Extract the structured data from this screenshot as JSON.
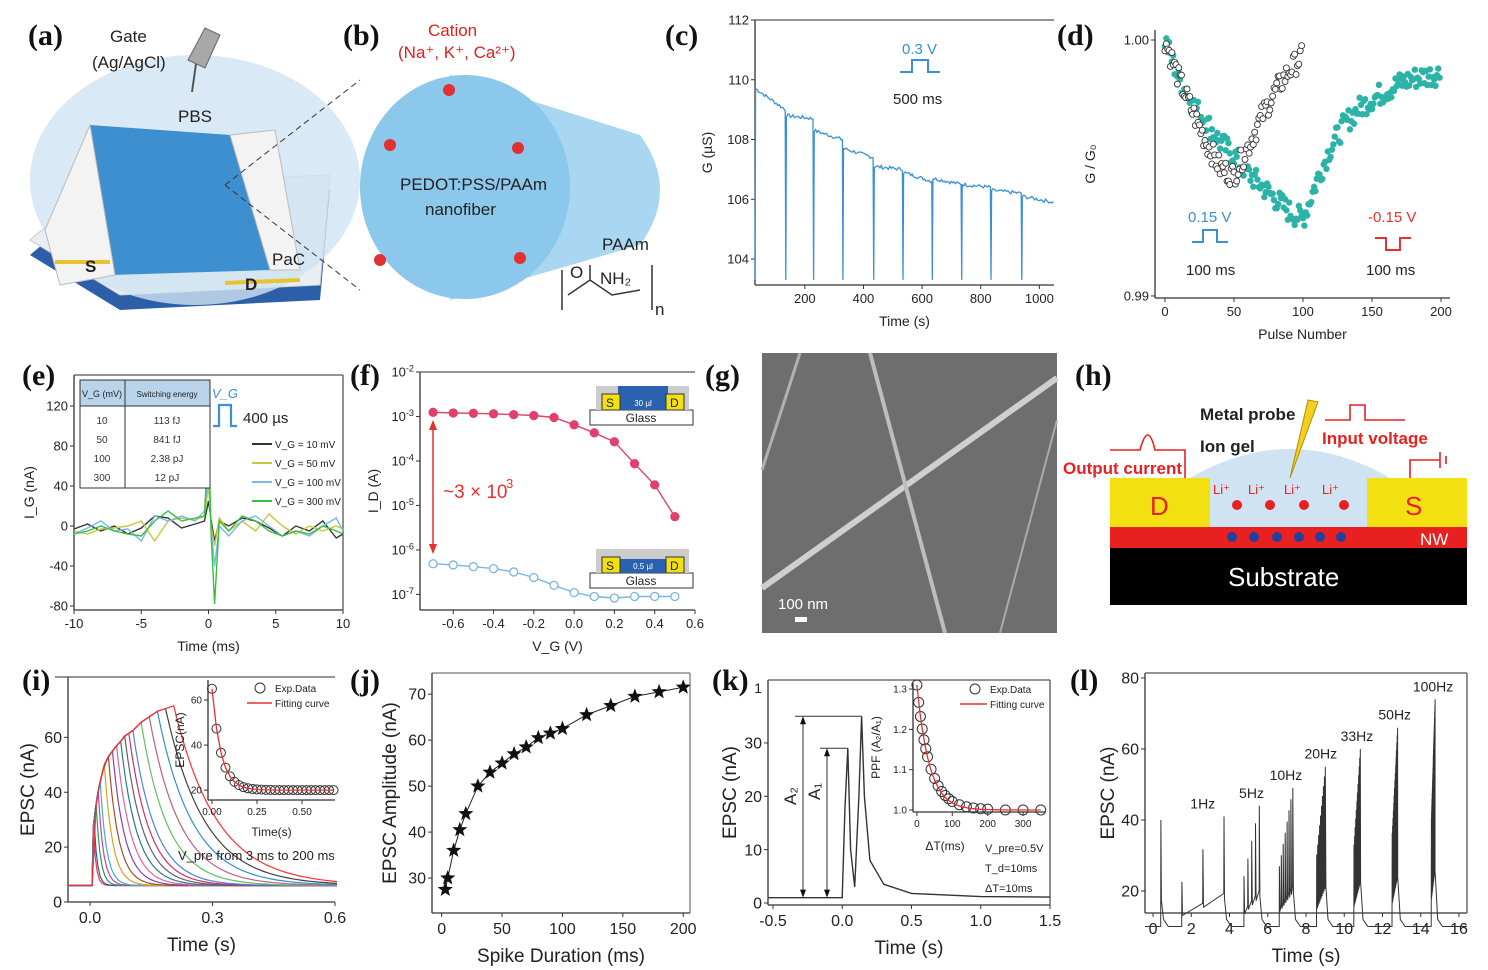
{
  "panel_labels": [
    "(a)",
    "(b)",
    "(c)",
    "(d)",
    "(e)",
    "(f)",
    "(g)",
    "(h)",
    "(i)",
    "(j)",
    "(k)",
    "(l)"
  ],
  "diagrams": {
    "a": {
      "gate": "Gate",
      "gate_material": "(Ag/AgCl)",
      "electrolyte": "PBS",
      "source": "S",
      "drain": "D",
      "encapsulation": "PaC"
    },
    "b": {
      "cation": "Cation",
      "cation_list": "(Na⁺, K⁺, Ca²⁺)",
      "fiber_line1": "PEDOT:PSS/PAAm",
      "fiber_line2": "nanofiber",
      "polymer": "PAAm",
      "oxygen": "O",
      "amine": "NH₂",
      "repeat": "n"
    },
    "g": {
      "scale_bar": "100 nm"
    },
    "h": {
      "probe": "Metal probe",
      "input": "Input voltage",
      "gel": "Ion gel",
      "output": "Output current",
      "drain": "D",
      "source": "S",
      "nanowire": "NW",
      "substrate": "Substrate",
      "ion": "Li⁺"
    }
  },
  "colors": {
    "blue_trace": "#3a8fd6",
    "teal": "#2bb3a8",
    "red": "#e8302f",
    "pink": "#e0406a",
    "light_blue": "#7ab6e0",
    "sem_gray": "#6e6e6e"
  },
  "chart_data": [
    {
      "panel": "c",
      "type": "line",
      "xlabel": "Time (s)",
      "ylabel": "G (µS)",
      "xlim": [
        30,
        1050
      ],
      "ylim": [
        103.13,
        112
      ],
      "xticks": [
        200,
        400,
        600,
        800,
        1000
      ],
      "yticks": [
        104,
        106,
        108,
        110,
        112
      ],
      "pulse_times": [
        30,
        135,
        230,
        330,
        435,
        535,
        635,
        735,
        835,
        940
      ],
      "segment_levels": [
        [
          109.7,
          109.0
        ],
        [
          108.8,
          108.7
        ],
        [
          108.3,
          108.0
        ],
        [
          107.7,
          107.4
        ],
        [
          107.1,
          107.0
        ],
        [
          106.9,
          106.6
        ],
        [
          106.7,
          106.5
        ],
        [
          106.5,
          106.4
        ],
        [
          106.3,
          106.2
        ],
        [
          106.1,
          105.9
        ]
      ],
      "dip_level": 103.3,
      "annotations": {
        "pulse_amplitude": "0.3 V",
        "pulse_width": "500 ms"
      }
    },
    {
      "panel": "d",
      "type": "scatter",
      "xlabel": "Pulse Number",
      "ylabel": "G / G₀",
      "xlim": [
        -7.2,
        206.5
      ],
      "ylim": [
        0.98992,
        1.00039
      ],
      "xticks": [
        0,
        50,
        100,
        150,
        200
      ],
      "yticks": [
        0.99,
        1.0
      ],
      "ytick_labels": [
        "0.99",
        "1.00"
      ],
      "series": [
        {
          "name": "teal",
          "x": [
            0,
            10,
            20,
            30,
            40,
            50,
            60,
            70,
            80,
            90,
            100,
            110,
            120,
            130,
            140,
            150,
            160,
            170,
            180,
            190,
            200
          ],
          "y": [
            1.0,
            0.9985,
            0.9975,
            0.9968,
            0.996,
            0.9955,
            0.9948,
            0.9943,
            0.9938,
            0.9933,
            0.993,
            0.9945,
            0.9958,
            0.9967,
            0.9973,
            0.9977,
            0.998,
            0.9983,
            0.9985,
            0.9986,
            0.9987
          ]
        },
        {
          "name": "open",
          "x": [
            0,
            10,
            20,
            30,
            40,
            50,
            60,
            70,
            80,
            90,
            100
          ],
          "y": [
            1.0,
            0.9985,
            0.9972,
            0.996,
            0.995,
            0.9947,
            0.9958,
            0.997,
            0.998,
            0.9988,
            0.9994
          ]
        }
      ],
      "annotations": {
        "pos_amp": "0.15 V",
        "pos_width": "100 ms",
        "neg_amp": "-0.15 V",
        "neg_width": "100 ms"
      }
    },
    {
      "panel": "e",
      "type": "line",
      "xlabel": "Time (ms)",
      "ylabel": "I_G (nA)",
      "xlim": [
        -10,
        10
      ],
      "ylim": [
        -84,
        151
      ],
      "xticks": [
        -10,
        -5,
        0,
        5,
        10
      ],
      "yticks": [
        -80,
        -40,
        0,
        40,
        80,
        120
      ],
      "x": [
        -10,
        -9,
        -8,
        -7,
        -6,
        -5,
        -4,
        -3,
        -2,
        -1,
        -0.3,
        0,
        0.2,
        0.45,
        0.8,
        1.5,
        2.5,
        3.5,
        4.5,
        5.5,
        6.5,
        7.5,
        8.5,
        9.5,
        10
      ],
      "series": [
        {
          "name": "V_G = 10 mV",
          "color": "#333333",
          "y": [
            -3,
            2,
            -5,
            0,
            -8,
            -2,
            10,
            8,
            -2,
            2,
            5,
            25,
            5,
            -15,
            5,
            0,
            8,
            5,
            -2,
            -10,
            0,
            -5,
            5,
            -12,
            -8
          ]
        },
        {
          "name": "V_G = 50 mV",
          "color": "#c9c640",
          "y": [
            -5,
            -8,
            -3,
            -2,
            0,
            5,
            -15,
            5,
            8,
            6,
            10,
            40,
            0,
            -20,
            8,
            -5,
            5,
            -5,
            12,
            0,
            -8,
            0,
            -5,
            0,
            -3
          ]
        },
        {
          "name": "V_G = 100 mV",
          "color": "#78b8ee",
          "y": [
            -8,
            -2,
            5,
            -5,
            -3,
            -15,
            10,
            5,
            10,
            5,
            15,
            55,
            -5,
            -40,
            0,
            -10,
            5,
            10,
            0,
            -10,
            -5,
            -10,
            0,
            8,
            -5
          ]
        },
        {
          "name": "V_G = 300 mV",
          "color": "#38c040",
          "y": [
            -8,
            -5,
            0,
            -5,
            -8,
            -10,
            5,
            15,
            5,
            8,
            10,
            95,
            -10,
            -78,
            5,
            -5,
            10,
            5,
            -5,
            -10,
            -5,
            -8,
            0,
            -5,
            -8
          ]
        }
      ],
      "table": {
        "headers": [
          "V_G (mV)",
          "Switching energy"
        ],
        "rows": [
          [
            "10",
            "113 fJ"
          ],
          [
            "50",
            "841 fJ"
          ],
          [
            "100",
            "2.38 pJ"
          ],
          [
            "300",
            "12 pJ"
          ]
        ]
      },
      "annotations": {
        "pulse_label": "V_G",
        "pulse_width": "400 µs"
      }
    },
    {
      "panel": "f",
      "type": "line",
      "yscale": "log",
      "xlabel": "V_G (V)",
      "ylabel": "I_D (A)",
      "xlim": [
        -0.765,
        0.6
      ],
      "ylim_log10": [
        -7.35,
        -2
      ],
      "xticks": [
        -0.6,
        -0.4,
        -0.2,
        0.0,
        0.2,
        0.4,
        0.6
      ],
      "xtick_labels": [
        "-0.6",
        "-0.4",
        "-0.2",
        "0.0",
        "0.2",
        "0.4",
        "0.6"
      ],
      "yticks_log10": [
        -7,
        -6,
        -5,
        -4,
        -3,
        -2
      ],
      "x": [
        -0.7,
        -0.6,
        -0.5,
        -0.4,
        -0.3,
        -0.2,
        -0.1,
        0.0,
        0.1,
        0.2,
        0.3,
        0.4,
        0.5
      ],
      "series": [
        {
          "name": "30 µl",
          "color": "#e0406a",
          "y": [
            0.00124,
            0.0012,
            0.00118,
            0.00115,
            0.0011,
            0.00105,
            0.00095,
            0.00065,
            0.00043,
            0.00027,
            8.7e-05,
            2.9e-05,
            5.6e-06
          ]
        },
        {
          "name": "0.5 µl",
          "color": "#7ab6e0",
          "y": [
            4.9e-07,
            4.6e-07,
            4.2e-07,
            3.8e-07,
            3.2e-07,
            2.4e-07,
            1.6e-07,
            1.1e-07,
            9e-08,
            8.3e-08,
            9e-08,
            9e-08,
            9e-08
          ]
        }
      ],
      "annotations": {
        "ratio": "~3 × 10",
        "ratio_exp": "3",
        "inset_top": {
          "s": "S",
          "vol": "30 µl",
          "d": "D",
          "sub": "Glass"
        },
        "inset_bottom": {
          "s": "S",
          "vol": "0.5 µl",
          "d": "D",
          "sub": "Glass"
        }
      }
    },
    {
      "panel": "i",
      "type": "line",
      "xlabel": "Time (s)",
      "ylabel": "EPSC (nA)",
      "xlim": [
        -0.054,
        0.6
      ],
      "ylim": [
        0,
        82
      ],
      "xticks": [
        0.0,
        0.3,
        0.6
      ],
      "xtick_labels": [
        "0.0",
        "0.3",
        "0.6"
      ],
      "yticks": [
        0,
        20,
        40,
        60
      ],
      "baseline": 6,
      "inset": {
        "xlabel": "Time(s)",
        "ylabel": "EPSC(nA)",
        "xlim": [
          -0.022,
          0.683
        ],
        "ylim": [
          15.6,
          68.9
        ],
        "xticks": [
          0.0,
          0.25,
          0.5
        ],
        "xtick_labels": [
          "0.00",
          "0.25",
          "0.50"
        ],
        "yticks": [
          20,
          40,
          60
        ],
        "x": [
          0,
          0.025,
          0.05,
          0.075,
          0.1,
          0.125,
          0.15,
          0.175,
          0.2,
          0.225,
          0.25,
          0.275,
          0.3,
          0.325,
          0.35,
          0.375,
          0.4,
          0.425,
          0.45,
          0.475,
          0.5,
          0.525,
          0.55,
          0.575,
          0.6,
          0.625,
          0.65,
          0.675
        ],
        "y": [
          65,
          47.3,
          36.6,
          30,
          26.1,
          23.7,
          22.2,
          21.3,
          20.8,
          20.5,
          20.3,
          20.2,
          20.1,
          20.1,
          20,
          20,
          20,
          20,
          20,
          20,
          20,
          20,
          20,
          20,
          20,
          20,
          20,
          20
        ],
        "legend": [
          "Exp.Data",
          "Fitting curve"
        ]
      },
      "annotations": {
        "range": "V_pre from 3 ms to 200 ms"
      }
    },
    {
      "panel": "j",
      "type": "scatter",
      "xlabel": "Spike Duration (ms)",
      "ylabel": "EPSC Amplitude (nA)",
      "xlim": [
        -8,
        205.6
      ],
      "ylim": [
        22.4,
        74.6
      ],
      "xticks": [
        0,
        50,
        100,
        150,
        200
      ],
      "yticks": [
        30,
        40,
        50,
        60,
        70
      ],
      "x": [
        3,
        5,
        10,
        15,
        20,
        30,
        40,
        50,
        60,
        70,
        80,
        90,
        100,
        120,
        140,
        160,
        180,
        200
      ],
      "y": [
        27.5,
        30,
        36,
        40.5,
        44,
        50,
        53,
        55,
        57,
        58.5,
        60.5,
        61.5,
        62.5,
        65.5,
        67.5,
        69.5,
        70.5,
        71.5
      ]
    },
    {
      "panel": "k",
      "type": "line",
      "xlabel": "Time (s)",
      "ylabel": "EPSC (nA)",
      "xlim": [
        -0.536,
        1.5
      ],
      "ylim": [
        -0.375,
        41.8
      ],
      "xticks": [
        -0.5,
        0.0,
        0.5,
        1.0,
        1.5
      ],
      "xtick_labels": [
        "-0.5",
        "0.0",
        "0.5",
        "1.0",
        "1.5"
      ],
      "yticks": [
        0,
        10,
        20,
        30
      ],
      "extra_ytick_label": "1",
      "x": [
        -0.536,
        -0.01,
        0.0,
        0.02,
        0.04,
        0.06,
        0.09,
        0.12,
        0.14,
        0.16,
        0.2,
        0.3,
        0.5,
        1.0,
        1.5
      ],
      "y": [
        1,
        1,
        1,
        18,
        29,
        10,
        3,
        20,
        35,
        20,
        8,
        3.5,
        1.8,
        1.2,
        1.1
      ],
      "annotations": {
        "a2": "A₂",
        "a1": "A₁",
        "a1_level": 29,
        "a2_level": 35,
        "vpre": "V_pre=0.5V",
        "td": "T_d=10ms",
        "dt": "ΔT=10ms"
      },
      "inset": {
        "xlabel": "ΔT(ms)",
        "ylabel": "PPF (A₂/A₁)",
        "xlim": [
          -11,
          362
        ],
        "ylim": [
          0.995,
          1.315
        ],
        "xticks": [
          0,
          100,
          200,
          300
        ],
        "yticks": [
          1.0,
          1.1,
          1.2,
          1.3
        ],
        "ytick_labels": [
          "1.0",
          "1.1",
          "1.2",
          "1.3"
        ],
        "x": [
          0,
          5,
          10,
          15,
          20,
          25,
          30,
          40,
          50,
          60,
          70,
          80,
          90,
          100,
          120,
          140,
          160,
          180,
          200,
          250,
          300,
          350
        ],
        "y": [
          1.31,
          1.267,
          1.232,
          1.201,
          1.174,
          1.152,
          1.132,
          1.101,
          1.078,
          1.06,
          1.046,
          1.036,
          1.028,
          1.021,
          1.013,
          1.008,
          1.005,
          1.003,
          1.002,
          1.0,
          1.0,
          1.0
        ],
        "legend": [
          "Exp.Data",
          "Fitting curve"
        ]
      }
    },
    {
      "panel": "l",
      "type": "line",
      "xlabel": "Time (s)",
      "ylabel": "EPSC (nA)",
      "xlim": [
        -0.42,
        16.42
      ],
      "ylim": [
        13.8,
        81.4
      ],
      "xticks": [
        0,
        2,
        4,
        6,
        8,
        10,
        12,
        14,
        16
      ],
      "yticks": [
        20,
        40,
        60,
        80
      ],
      "baseline": 10,
      "groups": [
        {
          "label": "",
          "start": 0.4,
          "count": 1,
          "interval": 1,
          "peak": 40
        },
        {
          "label": "1Hz",
          "start": 1.5,
          "count": 3,
          "interval": 1.1,
          "peak": 41
        },
        {
          "label": "5Hz",
          "start": 4.75,
          "count": 5,
          "interval": 0.2,
          "peak": 44
        },
        {
          "label": "10Hz",
          "start": 6.6,
          "count": 8,
          "interval": 0.1,
          "peak": 49
        },
        {
          "label": "20Hz",
          "start": 8.55,
          "count": 10,
          "interval": 0.05,
          "peak": 55
        },
        {
          "label": "33Hz",
          "start": 10.5,
          "count": 12,
          "interval": 0.03,
          "peak": 60
        },
        {
          "label": "50Hz",
          "start": 12.5,
          "count": 15,
          "interval": 0.02,
          "peak": 66
        },
        {
          "label": "100Hz",
          "start": 14.55,
          "count": 20,
          "interval": 0.01,
          "peak": 74
        }
      ]
    }
  ]
}
